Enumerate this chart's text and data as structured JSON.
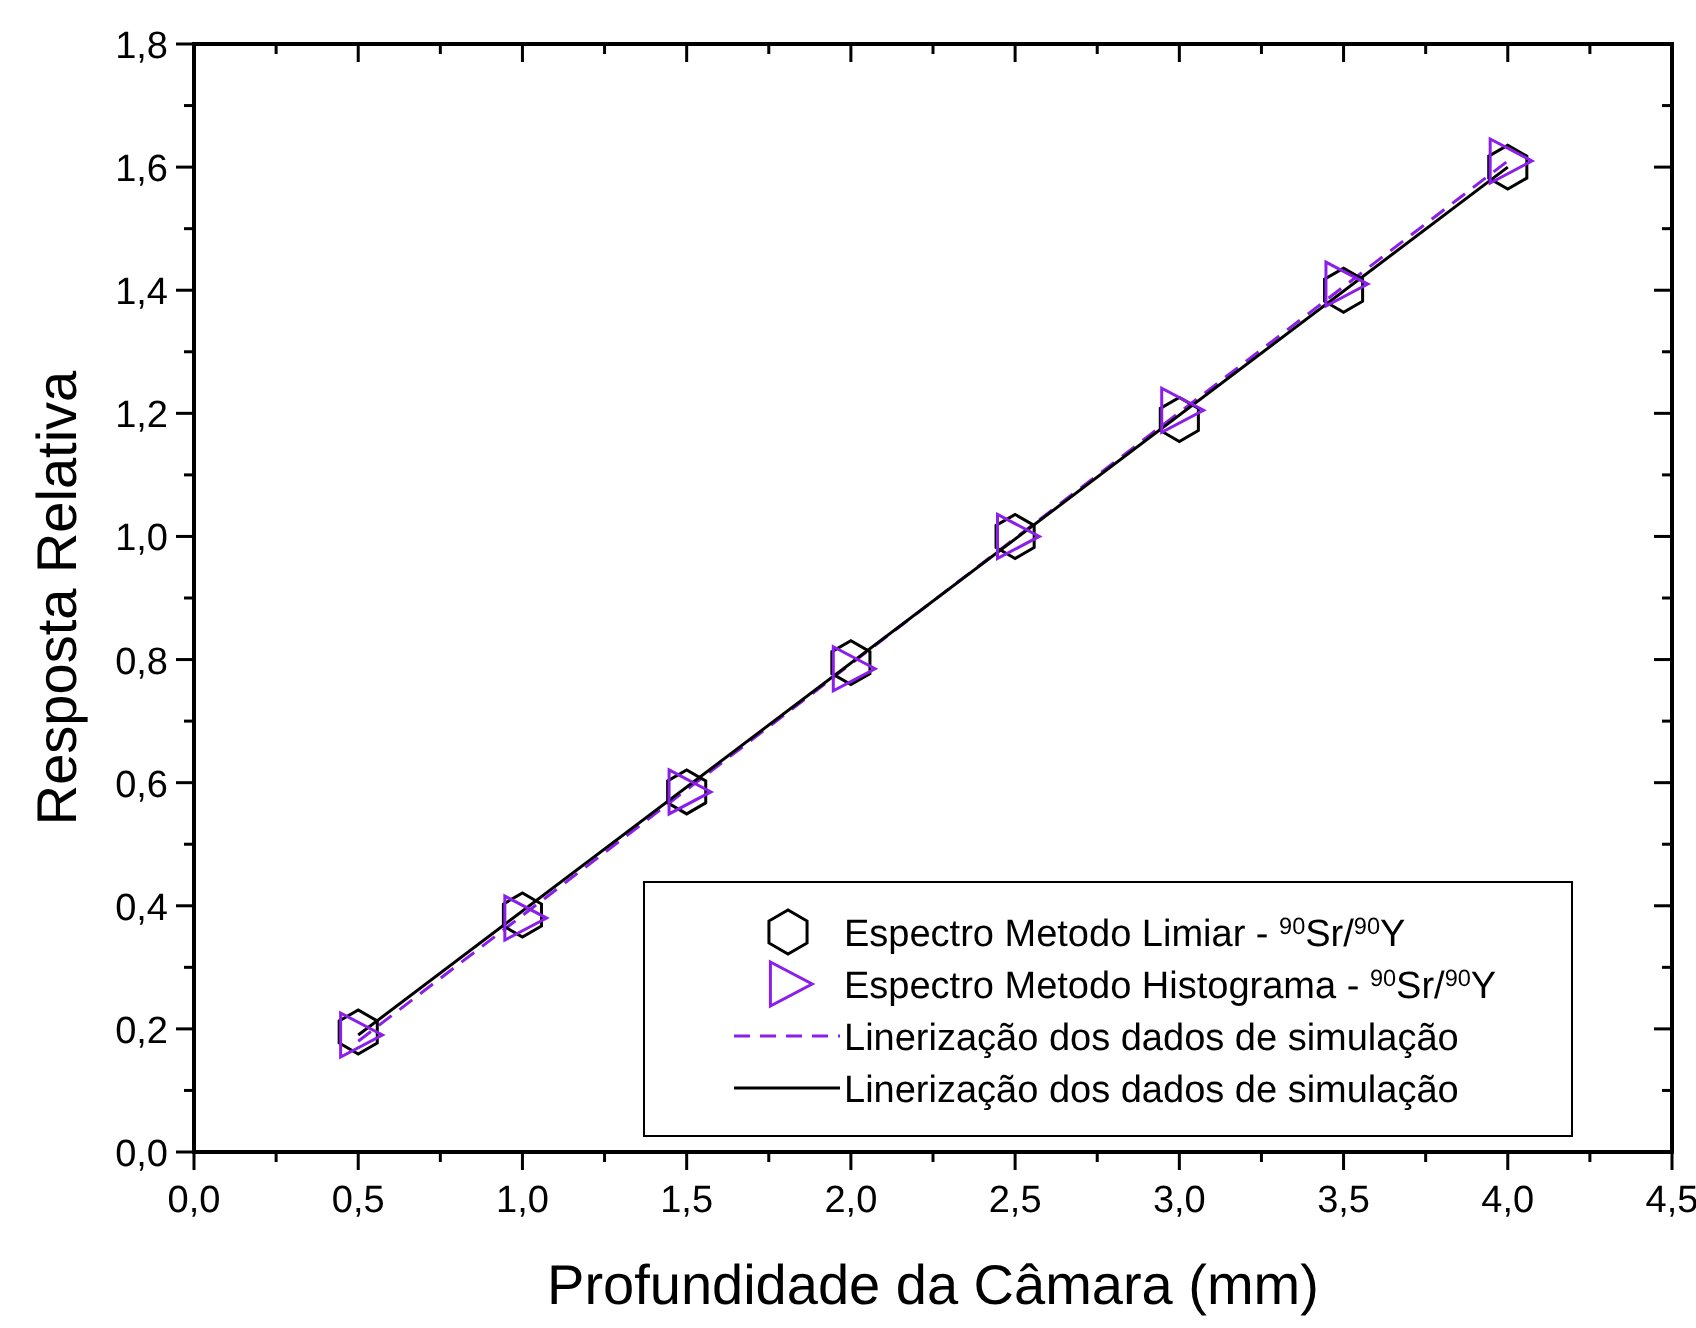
{
  "chart_data": {
    "type": "scatter",
    "xlabel": "Profundidade da Câmara (mm)",
    "ylabel": "Resposta Relativa",
    "xlim": [
      0,
      4.5
    ],
    "ylim": [
      0,
      1.8
    ],
    "xticks": [
      {
        "value": 0,
        "label": "0,0"
      },
      {
        "value": 0.5,
        "label": "0,5"
      },
      {
        "value": 1,
        "label": "1,0"
      },
      {
        "value": 1.5,
        "label": "1,5"
      },
      {
        "value": 2,
        "label": "2,0"
      },
      {
        "value": 2.5,
        "label": "2,5"
      },
      {
        "value": 3,
        "label": "3,0"
      },
      {
        "value": 3.5,
        "label": "3,5"
      },
      {
        "value": 4,
        "label": "4,0"
      },
      {
        "value": 4.5,
        "label": "4,5"
      }
    ],
    "yticks": [
      {
        "value": 0,
        "label": "0,0"
      },
      {
        "value": 0.2,
        "label": "0,2"
      },
      {
        "value": 0.4,
        "label": "0,4"
      },
      {
        "value": 0.6,
        "label": "0,6"
      },
      {
        "value": 0.8,
        "label": "0,8"
      },
      {
        "value": 1,
        "label": "1,0"
      },
      {
        "value": 1.2,
        "label": "1,2"
      },
      {
        "value": 1.4,
        "label": "1,4"
      },
      {
        "value": 1.6,
        "label": "1,6"
      },
      {
        "value": 1.8,
        "label": "1,8"
      }
    ],
    "grid": false,
    "legend": "bottom right",
    "series": [
      {
        "name": "Espectro Metodo Limiar  - $^{90}$Sr/$^{90}$Y",
        "color": "#000000",
        "x": [
          0.5,
          1,
          1.5,
          2,
          2.5,
          3,
          3.5,
          4
        ],
        "values": [
          0.195,
          0.385,
          0.585,
          0.795,
          1.0,
          1.19,
          1.4,
          1.6
        ]
      },
      {
        "name": "Espectro Metodo Histograma - $^{90}$Sr/$^{90}$Y",
        "marker": "triangle",
        "color": "#8b1ee8",
        "x": [
          0.5,
          1,
          1.5,
          2,
          2.5,
          3,
          3.5,
          4
        ],
        "values": [
          0.19,
          0.38,
          0.585,
          0.785,
          1.0,
          1.205,
          1.41,
          1.61
        ]
      },
      {
        "name": "Linerização dos dados de simulação",
        "type": "line",
        "line_style": "dashed",
        "color": "#8b1ee8",
        "x": [
          0.5,
          4
        ],
        "values": [
          0.18,
          1.61
        ]
      },
      {
        "name": "Linerização dos dados de simulação",
        "type": "line",
        "line_style": "solid",
        "color": "#000000",
        "x": [
          0.5,
          4
        ],
        "values": [
          0.19,
          1.6
        ]
      }
    ]
  }
}
